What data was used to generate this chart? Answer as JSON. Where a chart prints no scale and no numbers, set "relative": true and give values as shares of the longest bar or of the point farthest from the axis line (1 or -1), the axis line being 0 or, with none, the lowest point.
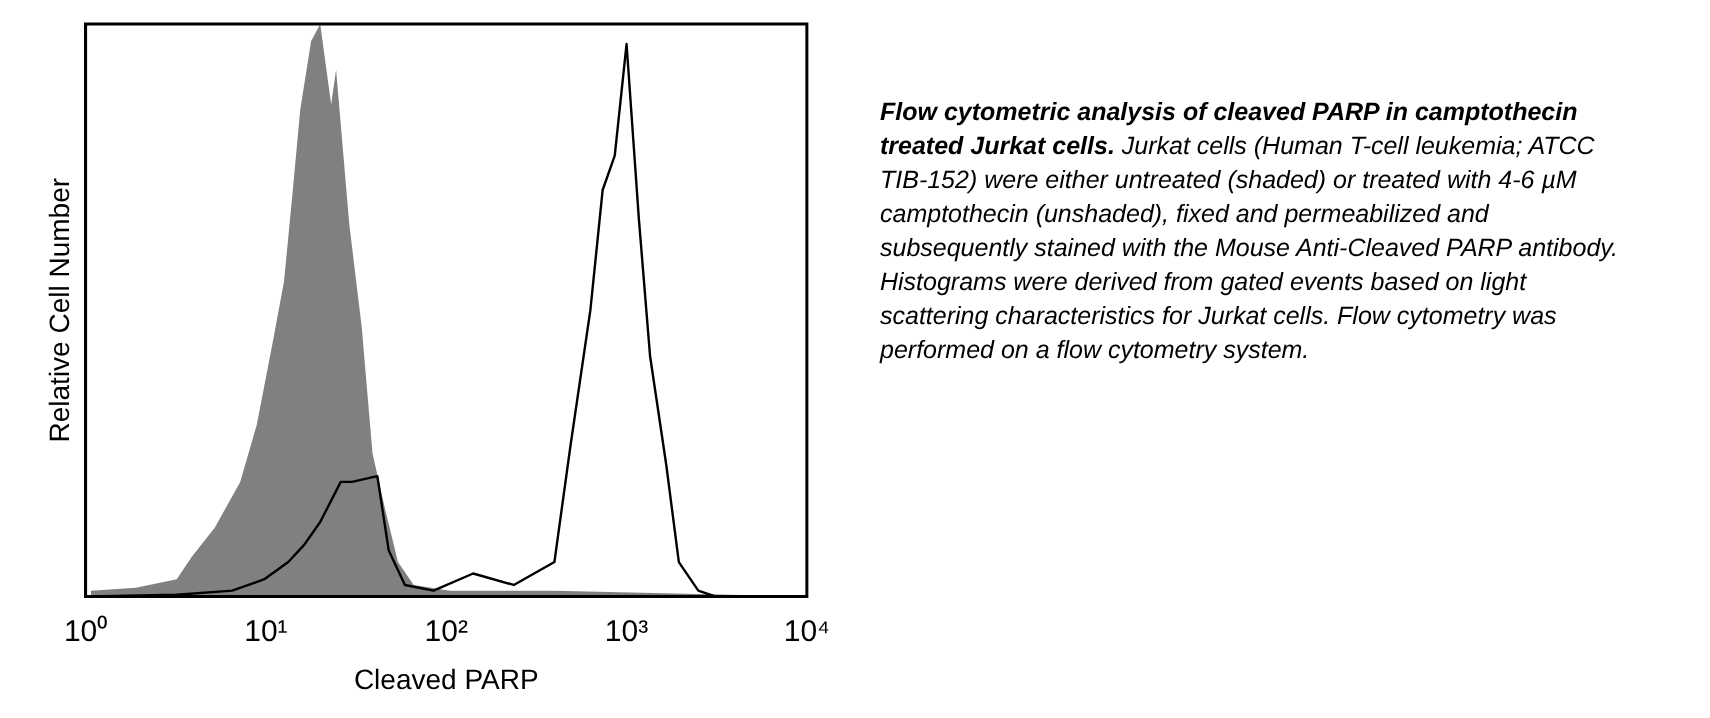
{
  "chart_data": {
    "type": "area",
    "xlabel": "Cleaved PARP",
    "ylabel": "Relative Cell Number",
    "relative": true,
    "log": "x",
    "xlim": [
      1,
      10000
    ],
    "xticks": [
      {
        "value": 1,
        "label": "10⁰"
      },
      {
        "value": 10,
        "label": "10¹"
      },
      {
        "value": 100,
        "label": "10²"
      },
      {
        "value": 1000,
        "label": "10³"
      },
      {
        "value": 10000,
        "label": "10⁴"
      }
    ],
    "grid": false,
    "legend": false,
    "series": [
      {
        "color": "#808080",
        "x": [
          1.07,
          1.9,
          3.2,
          3.9,
          5.2,
          7.2,
          8.9,
          11,
          12.6,
          14,
          15.5,
          17.8,
          20,
          23,
          24.5,
          29,
          34,
          39,
          46,
          54,
          66,
          105,
          400,
          1860,
          10000
        ],
        "values": [
          0.01,
          0.015,
          0.03,
          0.07,
          0.12,
          0.2,
          0.3,
          0.45,
          0.55,
          0.7,
          0.85,
          0.97,
          1.0,
          0.86,
          0.92,
          0.65,
          0.47,
          0.25,
          0.15,
          0.06,
          0.02,
          0.01,
          0.01,
          0.005,
          0
        ]
      },
      {
        "type": "line",
        "color": "#000000",
        "x": [
          1.07,
          3.2,
          6.5,
          9.8,
          13.3,
          16.3,
          20,
          26,
          30,
          41.5,
          48,
          59,
          85,
          141,
          237,
          398,
          487,
          630,
          737,
          860,
          1000,
          1170,
          1350,
          1660,
          1950,
          2500,
          3100
        ],
        "values": [
          0,
          0.003,
          0.01,
          0.03,
          0.06,
          0.09,
          0.13,
          0.2,
          0.2,
          0.21,
          0.08,
          0.02,
          0.01,
          0.04,
          0.02,
          0.06,
          0.26,
          0.5,
          0.71,
          0.77,
          0.965,
          0.66,
          0.42,
          0.23,
          0.06,
          0.01,
          0
        ]
      }
    ],
    "annotations": [
      "Flow cytometric analysis of cleaved PARP in camptothecin treated Jurkat cells.",
      "Jurkat cells (Human T-cell leukemia; ATCC TIB-152) were either untreated (shaded) or treated with 4-6 µM camptothecin (unshaded), fixed and permeabilized and subsequently stained with the Mouse Anti-Cleaved PARP antibody.",
      "Histograms were derived from gated events based on light scattering characteristics for Jurkat cells.",
      "Flow cytometry was performed on a flow cytometry system."
    ]
  }
}
